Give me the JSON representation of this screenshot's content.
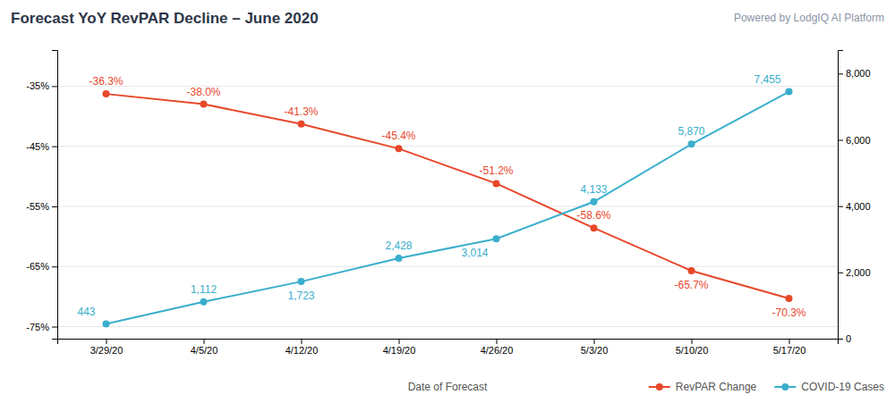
{
  "chart_data": {
    "type": "line",
    "title": "Forecast YoY RevPAR Decline – June 2020",
    "subtitle": "Powered by LodgIQ AI Platform",
    "xlabel": "Date of Forecast",
    "categories": [
      "3/29/20",
      "4/5/20",
      "4/12/20",
      "4/19/20",
      "4/26/20",
      "5/3/20",
      "5/10/20",
      "5/17/20"
    ],
    "series": [
      {
        "name": "RevPAR Change",
        "color": "#E8472A",
        "marker": "circle",
        "line_style": "solid",
        "values": [
          -36.3,
          -38.0,
          -41.3,
          -45.4,
          -51.2,
          -58.6,
          -65.7,
          -70.3
        ],
        "value_labels": [
          "-36.3%",
          "-38.0%",
          "-41.3%",
          "-45.4%",
          "-51.2%",
          "-58.6%",
          "-65.7%",
          "-70.3%"
        ]
      },
      {
        "name": "COVID-19 Cases",
        "color": "#3AAECC",
        "marker": "circle",
        "line_style": "solid",
        "axis": "y2",
        "values": [
          443,
          1112,
          1723,
          2428,
          3014,
          4133,
          5870,
          7455
        ],
        "value_labels": [
          "443",
          "1,112",
          "1,723",
          "2,428",
          "3,014",
          "4,133",
          "5,870",
          "7,455"
        ]
      }
    ],
    "ylim": [
      -77,
      -29
    ],
    "yticks": [
      {
        "value": -75,
        "label": "-75%"
      },
      {
        "value": -65,
        "label": "-65%"
      },
      {
        "value": -55,
        "label": "-55%"
      },
      {
        "value": -45,
        "label": "-45%"
      },
      {
        "value": -35,
        "label": "-35%"
      }
    ],
    "y2lim": [
      0,
      8711
    ],
    "y2ticks": [
      0,
      {
        "value": 2000,
        "label": "2,000"
      },
      {
        "value": 4000,
        "label": "4,000"
      },
      {
        "value": 6000,
        "label": "6,000"
      },
      {
        "value": 8000,
        "label": "8,000"
      }
    ],
    "grid": true,
    "data_labels": true,
    "legend": "bottom-right"
  }
}
